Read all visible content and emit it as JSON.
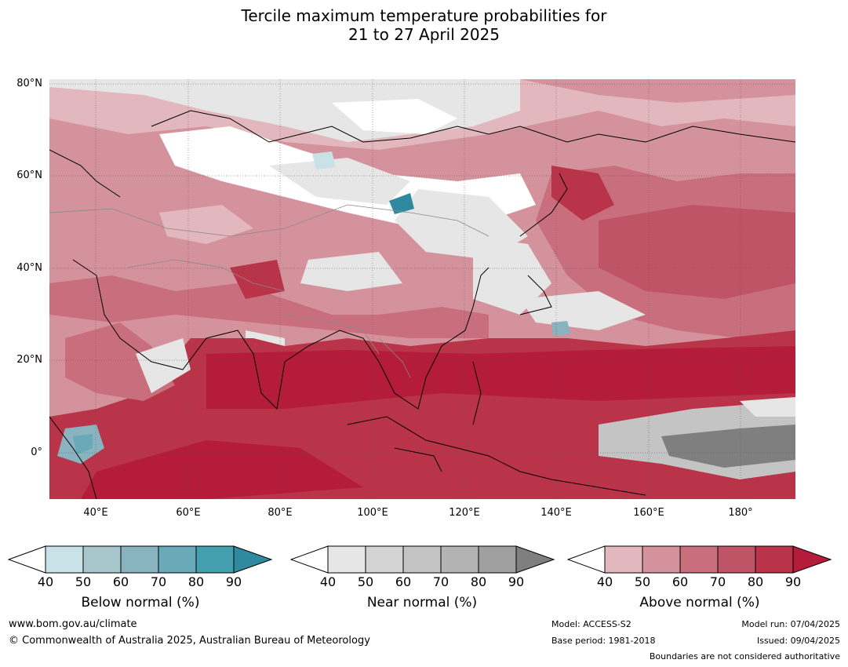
{
  "title": {
    "line1": "Tercile maximum temperature probabilities for",
    "line2": "21 to 27 April 2025"
  },
  "map": {
    "lat_labels": [
      "80°N",
      "60°N",
      "40°N",
      "20°N",
      "0°"
    ],
    "lon_labels": [
      "40°E",
      "60°E",
      "80°E",
      "100°E",
      "120°E",
      "140°E",
      "160°E",
      "180°"
    ]
  },
  "legend": {
    "below": {
      "title": "Below normal (%)",
      "ticks": [
        "40",
        "50",
        "60",
        "70",
        "80",
        "90"
      ],
      "colors": [
        "#ffffff",
        "#c9e2e8",
        "#a8c7cc",
        "#88b3bf",
        "#6aaab8",
        "#449fae",
        "#2f8aa0"
      ]
    },
    "near": {
      "title": "Near normal (%)",
      "ticks": [
        "40",
        "50",
        "60",
        "70",
        "80",
        "90"
      ],
      "colors": [
        "#ffffff",
        "#e6e6e6",
        "#d4d4d4",
        "#c4c4c4",
        "#b3b3b3",
        "#a0a0a0",
        "#7f7f7f"
      ]
    },
    "above": {
      "title": "Above normal (%)",
      "ticks": [
        "40",
        "50",
        "60",
        "70",
        "80",
        "90"
      ],
      "colors": [
        "#ffffff",
        "#e2b7bd",
        "#d4939c",
        "#c96e7c",
        "#bf5466",
        "#b93449",
        "#b41c3a"
      ]
    }
  },
  "footer": {
    "url": "www.bom.gov.au/climate",
    "copyright": "© Commonwealth of Australia 2025, Australian Bureau of Meteorology",
    "model": "Model: ACCESS-S2",
    "base_period": "Base period: 1981-2018",
    "model_run": "Model run: 07/04/2025",
    "issued": "Issued: 09/04/2025",
    "boundaries": "Boundaries are not considered authoritative"
  }
}
